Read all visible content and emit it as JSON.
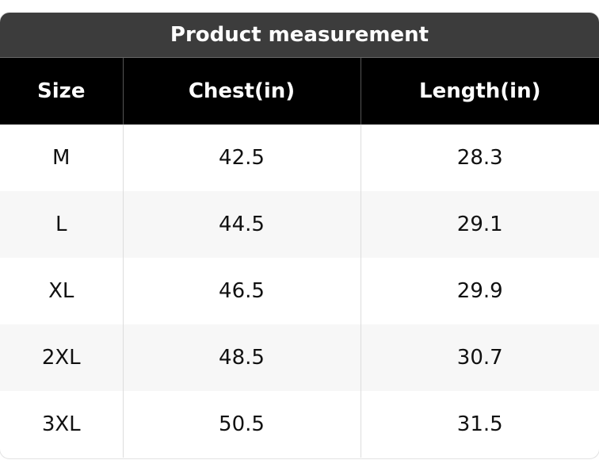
{
  "header": {
    "title": "Product measurement"
  },
  "table": {
    "columns": [
      "Size",
      "Chest(in)",
      "Length(in)"
    ],
    "rows": [
      [
        "M",
        "42.5",
        "28.3"
      ],
      [
        "L",
        "44.5",
        "29.1"
      ],
      [
        "XL",
        "46.5",
        "29.9"
      ],
      [
        "2XL",
        "48.5",
        "30.7"
      ],
      [
        "3XL",
        "50.5",
        "31.5"
      ]
    ]
  }
}
